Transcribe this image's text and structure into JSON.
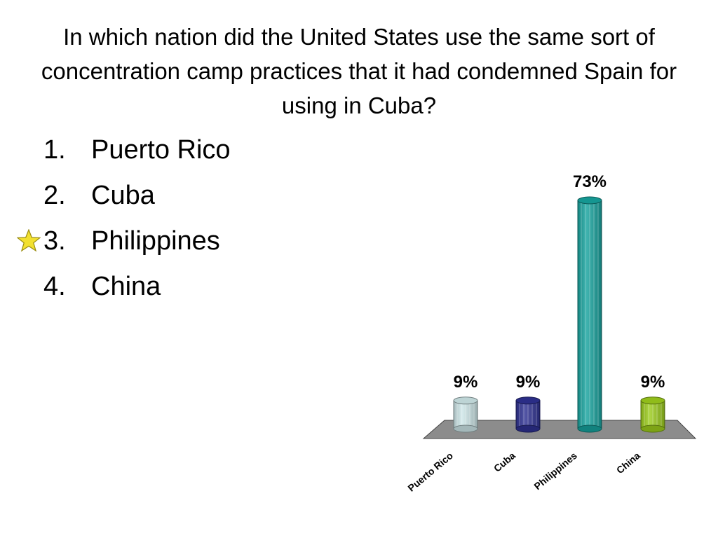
{
  "slide": {
    "question": "In which nation did the United States use the same sort of concentration camp practices that it had condemned Spain for using in Cuba?",
    "options": [
      {
        "number": "1.",
        "label": "Puerto Rico",
        "correct": false
      },
      {
        "number": "2.",
        "label": "Cuba",
        "correct": false
      },
      {
        "number": "3.",
        "label": "Philippines",
        "correct": true
      },
      {
        "number": "4.",
        "label": "China",
        "correct": false
      }
    ],
    "correct_marker_icon": "star-icon"
  },
  "chart_data": {
    "type": "bar",
    "categories": [
      "Puerto Rico",
      "Cuba",
      "Philippines",
      "China"
    ],
    "values": [
      9,
      9,
      73,
      9
    ],
    "data_labels": [
      "9%",
      "9%",
      "73%",
      "9%"
    ],
    "colors": [
      "#cde6e8",
      "#2e3192",
      "#17a39e",
      "#9ccc1c"
    ],
    "floor_color": "#8c8c8c",
    "ylim": [
      0,
      73
    ],
    "grid": false,
    "legend": "none",
    "title": "",
    "xlabel": "",
    "ylabel": ""
  }
}
